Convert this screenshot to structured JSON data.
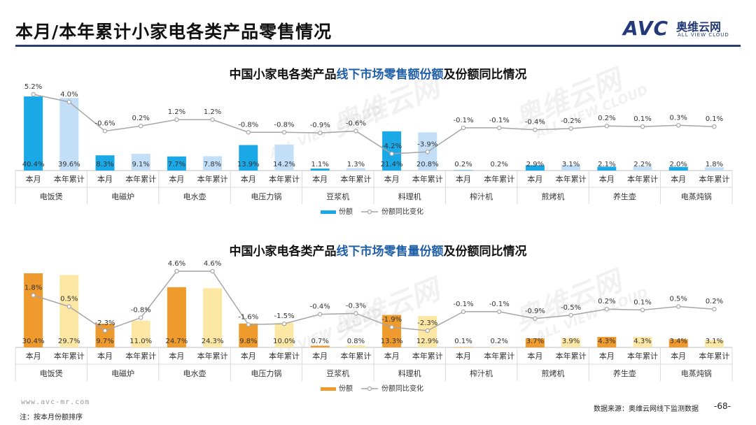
{
  "page": {
    "title": "本月/本年累计小家电各类产品零售情况",
    "logo_mark": "AVC",
    "logo_cn": "奥维云网",
    "logo_en": "ALL VIEW CLOUD",
    "url": "www.avc-mr.com",
    "note": "注：按本月份额排序",
    "source": "数据来源：奥维云网线下监测数据",
    "page_number": "-68-",
    "watermark": "奥维云网",
    "watermark_en": "ALL VIEW CLOUD"
  },
  "chart_data": [
    {
      "type": "bar",
      "title_parts": [
        {
          "text": "中国小家电各类产品",
          "color": "#111111"
        },
        {
          "text": "线下市场零售额份额",
          "color": "#1f5fa8"
        },
        {
          "text": "及份额同比情况",
          "color": "#111111"
        }
      ],
      "groups": [
        "电饭煲",
        "电磁炉",
        "电水壶",
        "电压力锅",
        "豆浆机",
        "料理机",
        "榨汁机",
        "煎烤机",
        "养生壶",
        "电蒸炖锅"
      ],
      "subcategories": [
        "本月",
        "本年累计"
      ],
      "series": [
        {
          "name": "份额",
          "kind": "bar",
          "colors": [
            "#1aa8e6",
            "#c3dff7"
          ],
          "values": [
            40.4,
            39.6,
            8.3,
            9.1,
            7.7,
            7.8,
            13.9,
            14.2,
            1.1,
            1.3,
            21.4,
            20.8,
            0.2,
            0.2,
            2.9,
            3.1,
            2.1,
            2.2,
            2.0,
            1.8
          ]
        },
        {
          "name": "份额同比变化",
          "kind": "line",
          "color": "#a6a6a6",
          "values": [
            5.2,
            4.0,
            -0.6,
            0.2,
            1.2,
            1.2,
            -0.8,
            -0.8,
            -0.9,
            -0.6,
            -4.2,
            -3.9,
            -0.1,
            -0.1,
            -0.4,
            -0.2,
            0.2,
            0.1,
            0.3,
            0.1
          ]
        }
      ],
      "bar_labels": [
        "40.4%",
        "39.6%",
        "8.3%",
        "9.1%",
        "7.7%",
        "7.8%",
        "13.9%",
        "14.2%",
        "1.1%",
        "1.3%",
        "21.4%",
        "20.8%",
        "0.2%",
        "0.2%",
        "2.9%",
        "3.1%",
        "2.1%",
        "2.2%",
        "2.0%",
        "1.8%"
      ],
      "line_labels": [
        "5.2%",
        "4.0%",
        "-0.6%",
        "0.2%",
        "1.2%",
        "1.2%",
        "-0.8%",
        "-0.8%",
        "-0.9%",
        "-0.6%",
        "-4.2%",
        "-3.9%",
        "-0.1%",
        "-0.1%",
        "-0.4%",
        "-0.2%",
        "0.2%",
        "0.1%",
        "0.3%",
        "0.1%"
      ],
      "bar_max": 40.4,
      "line_range": [
        -4.2,
        5.2
      ],
      "legend": {
        "placement": "bottom",
        "items": [
          "份额",
          "份额同比变化"
        ]
      }
    },
    {
      "type": "bar",
      "title_parts": [
        {
          "text": "中国小家电各类产品",
          "color": "#111111"
        },
        {
          "text": "线下市场零售量份额",
          "color": "#1f5fa8"
        },
        {
          "text": "及份额同比情况",
          "color": "#111111"
        }
      ],
      "groups": [
        "电饭煲",
        "电磁炉",
        "电水壶",
        "电压力锅",
        "豆浆机",
        "料理机",
        "榨汁机",
        "煎烤机",
        "养生壶",
        "电蒸炖锅"
      ],
      "subcategories": [
        "本月",
        "本年累计"
      ],
      "series": [
        {
          "name": "份额",
          "kind": "bar",
          "colors": [
            "#ef9a2c",
            "#fde7a5"
          ],
          "values": [
            30.4,
            29.7,
            9.7,
            11.0,
            24.7,
            24.3,
            9.8,
            10.0,
            0.7,
            0.8,
            13.3,
            12.9,
            0.1,
            0.2,
            3.7,
            3.9,
            4.3,
            4.3,
            3.4,
            3.1
          ]
        },
        {
          "name": "份额同比变化",
          "kind": "line",
          "color": "#a6a6a6",
          "values": [
            1.8,
            0.5,
            -2.3,
            -0.8,
            4.6,
            4.6,
            -1.6,
            -1.5,
            -0.4,
            -0.3,
            -1.9,
            -2.3,
            -0.1,
            -0.1,
            -0.9,
            -0.5,
            0.2,
            0.1,
            0.5,
            0.2
          ]
        }
      ],
      "bar_labels": [
        "30.4%",
        "29.7%",
        "9.7%",
        "11.0%",
        "24.7%",
        "24.3%",
        "9.8%",
        "10.0%",
        "0.7%",
        "0.8%",
        "13.3%",
        "12.9%",
        "0.1%",
        "0.2%",
        "3.7%",
        "3.9%",
        "4.3%",
        "4.3%",
        "3.4%",
        "3.1%"
      ],
      "line_labels": [
        "1.8%",
        "0.5%",
        "-2.3%",
        "-0.8%",
        "4.6%",
        "4.6%",
        "-1.6%",
        "-1.5%",
        "-0.4%",
        "-0.3%",
        "-1.9%",
        "-2.3%",
        "-0.1%",
        "-0.1%",
        "-0.9%",
        "-0.5%",
        "0.2%",
        "0.1%",
        "0.5%",
        "0.2%"
      ],
      "bar_max": 30.4,
      "line_range": [
        -2.3,
        4.6
      ],
      "legend": {
        "placement": "bottom",
        "items": [
          "份额",
          "份额同比变化"
        ]
      }
    }
  ]
}
